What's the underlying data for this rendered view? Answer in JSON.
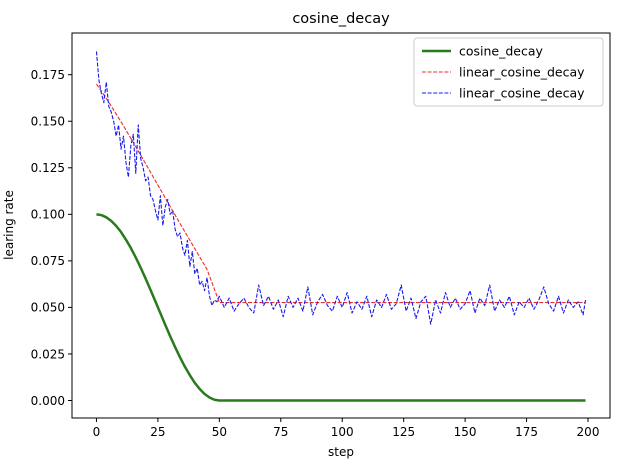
{
  "chart_data": {
    "type": "line",
    "title": "cosine_decay",
    "xlabel": "step",
    "ylabel": "learing rate",
    "xlim": [
      -9.95,
      208.95
    ],
    "ylim": [
      -0.0094,
      0.1974
    ],
    "xticks": [
      0,
      25,
      50,
      75,
      100,
      125,
      150,
      175,
      200
    ],
    "xtick_labels": [
      "0",
      "25",
      "50",
      "75",
      "100",
      "125",
      "150",
      "175",
      "200"
    ],
    "yticks": [
      0.0,
      0.025,
      0.05,
      0.075,
      0.1,
      0.125,
      0.15,
      0.175
    ],
    "ytick_labels": [
      "0.000",
      "0.025",
      "0.050",
      "0.075",
      "0.100",
      "0.125",
      "0.150",
      "0.175"
    ],
    "grid": false,
    "legend_position": "upper right",
    "series": [
      {
        "name": "cosine_decay",
        "color": "#2a7a1e",
        "style": "solid",
        "width": 2.5,
        "x": [
          0,
          2,
          4,
          6,
          8,
          10,
          12,
          14,
          16,
          18,
          20,
          22,
          24,
          26,
          28,
          30,
          32,
          34,
          36,
          38,
          40,
          42,
          44,
          46,
          48,
          50,
          60,
          80,
          100,
          120,
          140,
          160,
          180,
          199
        ],
        "y": [
          0.1,
          0.0996,
          0.0984,
          0.0965,
          0.0938,
          0.0905,
          0.0864,
          0.0819,
          0.0768,
          0.0713,
          0.0655,
          0.0594,
          0.0532,
          0.0469,
          0.0406,
          0.0345,
          0.0287,
          0.0232,
          0.0181,
          0.0136,
          0.0095,
          0.0062,
          0.0035,
          0.0016,
          0.0004,
          0.0,
          0.0,
          0.0,
          0.0,
          0.0,
          0.0,
          0.0,
          0.0,
          0.0
        ]
      },
      {
        "name": "linear_cosine_decay",
        "color": "#e8302e",
        "style": "dashed",
        "width": 1.1,
        "x": [
          0,
          5,
          10,
          15,
          20,
          25,
          30,
          35,
          40,
          45,
          50,
          75,
          100,
          125,
          150,
          175,
          199
        ],
        "y": [
          0.17,
          0.1603,
          0.1497,
          0.1386,
          0.1272,
          0.1157,
          0.1042,
          0.0928,
          0.0816,
          0.0704,
          0.0526,
          0.0526,
          0.0526,
          0.0526,
          0.0526,
          0.0526,
          0.0526
        ]
      },
      {
        "name": "linear_cosine_decay",
        "color": "#1a1aee",
        "style": "dashed",
        "width": 1.1,
        "x": [
          0,
          1,
          2,
          3,
          4,
          5,
          6,
          7,
          8,
          9,
          10,
          11,
          12,
          13,
          14,
          15,
          16,
          17,
          18,
          19,
          20,
          21,
          22,
          23,
          24,
          25,
          26,
          27,
          28,
          29,
          30,
          31,
          32,
          33,
          34,
          35,
          36,
          37,
          38,
          39,
          40,
          41,
          42,
          43,
          44,
          45,
          46,
          47,
          48,
          49,
          50,
          52,
          54,
          56,
          58,
          60,
          62,
          64,
          66,
          68,
          70,
          72,
          74,
          76,
          78,
          80,
          82,
          84,
          86,
          88,
          90,
          92,
          94,
          96,
          98,
          100,
          102,
          104,
          106,
          108,
          110,
          112,
          114,
          116,
          118,
          120,
          122,
          124,
          126,
          128,
          130,
          132,
          134,
          136,
          138,
          140,
          142,
          144,
          146,
          148,
          150,
          152,
          154,
          156,
          158,
          160,
          162,
          164,
          166,
          168,
          170,
          172,
          174,
          176,
          178,
          180,
          182,
          184,
          186,
          188,
          190,
          192,
          194,
          196,
          198,
          199
        ],
        "y": [
          0.1875,
          0.172,
          0.165,
          0.16,
          0.171,
          0.158,
          0.155,
          0.15,
          0.142,
          0.148,
          0.135,
          0.142,
          0.128,
          0.12,
          0.137,
          0.143,
          0.122,
          0.148,
          0.13,
          0.125,
          0.118,
          0.12,
          0.11,
          0.108,
          0.102,
          0.097,
          0.11,
          0.094,
          0.104,
          0.108,
          0.1,
          0.102,
          0.092,
          0.088,
          0.09,
          0.082,
          0.078,
          0.086,
          0.072,
          0.08,
          0.068,
          0.071,
          0.062,
          0.064,
          0.059,
          0.066,
          0.056,
          0.051,
          0.054,
          0.053,
          0.056,
          0.05,
          0.055,
          0.048,
          0.052,
          0.055,
          0.05,
          0.047,
          0.062,
          0.051,
          0.056,
          0.049,
          0.054,
          0.045,
          0.056,
          0.05,
          0.055,
          0.048,
          0.061,
          0.046,
          0.053,
          0.057,
          0.051,
          0.048,
          0.056,
          0.05,
          0.058,
          0.047,
          0.053,
          0.049,
          0.056,
          0.045,
          0.054,
          0.05,
          0.057,
          0.049,
          0.052,
          0.062,
          0.048,
          0.055,
          0.044,
          0.053,
          0.056,
          0.041,
          0.054,
          0.047,
          0.058,
          0.05,
          0.055,
          0.049,
          0.052,
          0.059,
          0.047,
          0.055,
          0.051,
          0.062,
          0.048,
          0.054,
          0.05,
          0.056,
          0.046,
          0.053,
          0.05,
          0.055,
          0.049,
          0.054,
          0.061,
          0.052,
          0.048,
          0.056,
          0.047,
          0.054,
          0.05,
          0.053,
          0.046,
          0.054
        ]
      }
    ]
  }
}
